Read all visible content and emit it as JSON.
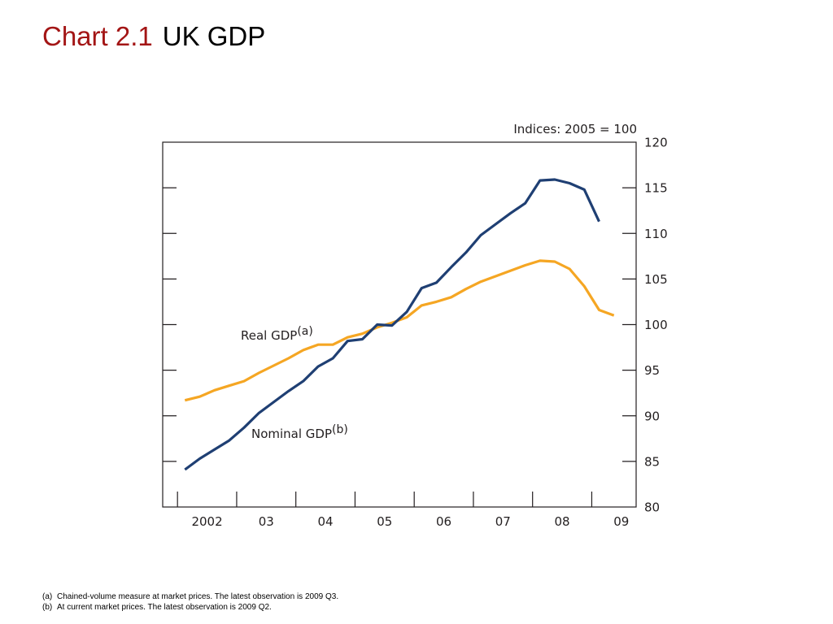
{
  "title": {
    "prefix": "Chart 2.1",
    "main": "UK GDP"
  },
  "chart_data": {
    "type": "line",
    "units_label": "Indices:  2005 = 100",
    "ylim": [
      80,
      120
    ],
    "yticks": [
      80,
      85,
      90,
      95,
      100,
      105,
      110,
      115,
      120
    ],
    "xlim": [
      2001.75,
      2009.75
    ],
    "xticks": [
      {
        "pos": 2002,
        "label": "2002"
      },
      {
        "pos": 2003,
        "label": "03"
      },
      {
        "pos": 2004,
        "label": "04"
      },
      {
        "pos": 2005,
        "label": "05"
      },
      {
        "pos": 2006,
        "label": "06"
      },
      {
        "pos": 2007,
        "label": "07"
      },
      {
        "pos": 2008,
        "label": "08"
      },
      {
        "pos": 2009,
        "label": "09"
      }
    ],
    "grid": false,
    "series": [
      {
        "name": "Real GDP",
        "note_marker": "(a)",
        "color": "#f5a623",
        "x": [
          2002.125,
          2002.375,
          2002.625,
          2002.875,
          2003.125,
          2003.375,
          2003.625,
          2003.875,
          2004.125,
          2004.375,
          2004.625,
          2004.875,
          2005.125,
          2005.375,
          2005.625,
          2005.875,
          2006.125,
          2006.375,
          2006.625,
          2006.875,
          2007.125,
          2007.375,
          2007.625,
          2007.875,
          2008.125,
          2008.375,
          2008.625,
          2008.875,
          2009.125,
          2009.375
        ],
        "values": [
          91.7,
          92.1,
          92.8,
          93.3,
          93.8,
          94.7,
          95.5,
          96.3,
          97.2,
          97.8,
          97.8,
          98.6,
          99.0,
          99.7,
          100.2,
          100.8,
          102.1,
          102.5,
          103.0,
          103.9,
          104.7,
          105.3,
          105.9,
          106.5,
          107.0,
          106.9,
          106.1,
          104.2,
          101.6,
          101.0
        ]
      },
      {
        "name": "Nominal GDP",
        "note_marker": "(b)",
        "color": "#1f3f73",
        "x": [
          2002.125,
          2002.375,
          2002.625,
          2002.875,
          2003.125,
          2003.375,
          2003.625,
          2003.875,
          2004.125,
          2004.375,
          2004.625,
          2004.875,
          2005.125,
          2005.375,
          2005.625,
          2005.875,
          2006.125,
          2006.375,
          2006.625,
          2006.875,
          2007.125,
          2007.375,
          2007.625,
          2007.875,
          2008.125,
          2008.375,
          2008.625,
          2008.875,
          2009.125
        ],
        "values": [
          84.1,
          85.3,
          86.3,
          87.3,
          88.7,
          90.3,
          91.5,
          92.7,
          93.8,
          95.4,
          96.3,
          98.2,
          98.4,
          100.0,
          99.9,
          101.4,
          104.0,
          104.6,
          106.3,
          107.9,
          109.8,
          111.0,
          112.2,
          113.3,
          115.8,
          115.9,
          115.5,
          114.8,
          111.3
        ]
      }
    ],
    "series_labels": [
      {
        "text": "Real GDP",
        "sup": "(a)"
      },
      {
        "text": "Nominal GDP",
        "sup": "(b)"
      }
    ]
  },
  "footnotes": [
    {
      "mark": "(a)",
      "text": "Chained-volume measure at market prices.  The latest observation is 2009 Q3."
    },
    {
      "mark": "(b)",
      "text": "At current market prices.  The latest observation is 2009 Q2."
    }
  ]
}
